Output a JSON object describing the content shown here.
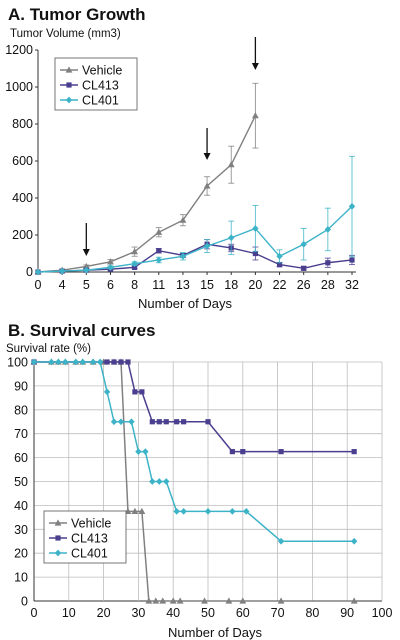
{
  "chart_data": [
    {
      "type": "line",
      "title": "A. Tumor Growth",
      "ylabel": "Tumor Volume (mm3)",
      "xlabel": "Number of Days",
      "ylim": [
        0,
        1200
      ],
      "yticks": [
        0,
        200,
        400,
        600,
        800,
        1000,
        1200
      ],
      "x_categories": [
        "0",
        "4",
        "5",
        "6",
        "8",
        "11",
        "13",
        "15",
        "18",
        "20",
        "22",
        "26",
        "28",
        "32"
      ],
      "grid": false,
      "legend_position": "top-left",
      "arrows_at": [
        "5",
        "15",
        "20"
      ],
      "series": [
        {
          "name": "Vehicle",
          "color": "#808080",
          "marker": "triangle",
          "x": [
            "0",
            "4",
            "5",
            "6",
            "8",
            "11",
            "13",
            "15",
            "18",
            "20"
          ],
          "y": [
            0,
            10,
            30,
            55,
            110,
            215,
            280,
            465,
            580,
            845
          ],
          "err": [
            0,
            5,
            8,
            12,
            25,
            25,
            30,
            50,
            100,
            175
          ]
        },
        {
          "name": "CL413",
          "color": "#4a3f8f",
          "marker": "square",
          "x": [
            "0",
            "4",
            "5",
            "6",
            "8",
            "11",
            "13",
            "15",
            "18",
            "20",
            "22",
            "26",
            "28",
            "32"
          ],
          "y": [
            0,
            5,
            10,
            15,
            25,
            115,
            90,
            150,
            130,
            100,
            40,
            20,
            50,
            65
          ],
          "err": [
            0,
            3,
            4,
            5,
            8,
            12,
            10,
            25,
            20,
            35,
            12,
            10,
            25,
            25
          ]
        },
        {
          "name": "CL401",
          "color": "#3db3c8",
          "marker": "diamond",
          "x": [
            "0",
            "4",
            "5",
            "6",
            "8",
            "11",
            "13",
            "15",
            "18",
            "20",
            "22",
            "26",
            "28",
            "32"
          ],
          "y": [
            0,
            5,
            10,
            25,
            45,
            65,
            85,
            140,
            185,
            235,
            85,
            150,
            230,
            355
          ],
          "err": [
            0,
            3,
            4,
            8,
            10,
            15,
            20,
            35,
            90,
            125,
            35,
            85,
            115,
            270
          ]
        }
      ]
    },
    {
      "type": "line",
      "title": "B. Survival curves",
      "ylabel": "Survival rate (%)",
      "xlabel": "Number of Days",
      "xlim": [
        0,
        100
      ],
      "ylim": [
        0,
        100
      ],
      "xticks": [
        0,
        10,
        20,
        30,
        40,
        50,
        60,
        70,
        80,
        90,
        100
      ],
      "yticks": [
        0,
        10,
        20,
        30,
        40,
        50,
        60,
        70,
        80,
        90,
        100
      ],
      "grid": true,
      "legend_position": "bottom-left",
      "series": [
        {
          "name": "Vehicle",
          "color": "#808080",
          "marker": "triangle",
          "x": [
            0,
            5,
            7,
            9,
            12,
            14,
            17,
            20,
            23,
            25,
            27,
            29,
            31,
            33,
            35,
            37,
            40,
            42,
            49,
            56,
            60,
            71,
            92
          ],
          "y": [
            100,
            100,
            100,
            100,
            100,
            100,
            100,
            100,
            100,
            100,
            37.5,
            37.5,
            37.5,
            0,
            0,
            0,
            0,
            0,
            0,
            0,
            0,
            0,
            0
          ]
        },
        {
          "name": "CL413",
          "color": "#4a3f8f",
          "marker": "square",
          "x": [
            0,
            21,
            23,
            25,
            27,
            29,
            31,
            34,
            36,
            38,
            41,
            43,
            50,
            57,
            60,
            71,
            92
          ],
          "y": [
            100,
            100,
            100,
            100,
            100,
            87.5,
            87.5,
            75,
            75,
            75,
            75,
            75,
            75,
            62.5,
            62.5,
            62.5,
            62.5
          ]
        },
        {
          "name": "CL401",
          "color": "#3db3c8",
          "marker": "diamond",
          "x": [
            0,
            5,
            7,
            9,
            12,
            14,
            17,
            19,
            21,
            23,
            25,
            28,
            30,
            32,
            34,
            36,
            38,
            41,
            43,
            50,
            57,
            61,
            71,
            92
          ],
          "y": [
            100,
            100,
            100,
            100,
            100,
            100,
            100,
            100,
            87.5,
            75,
            75,
            75,
            62.5,
            62.5,
            50,
            50,
            50,
            37.5,
            37.5,
            37.5,
            37.5,
            37.5,
            25,
            25
          ]
        }
      ]
    }
  ]
}
